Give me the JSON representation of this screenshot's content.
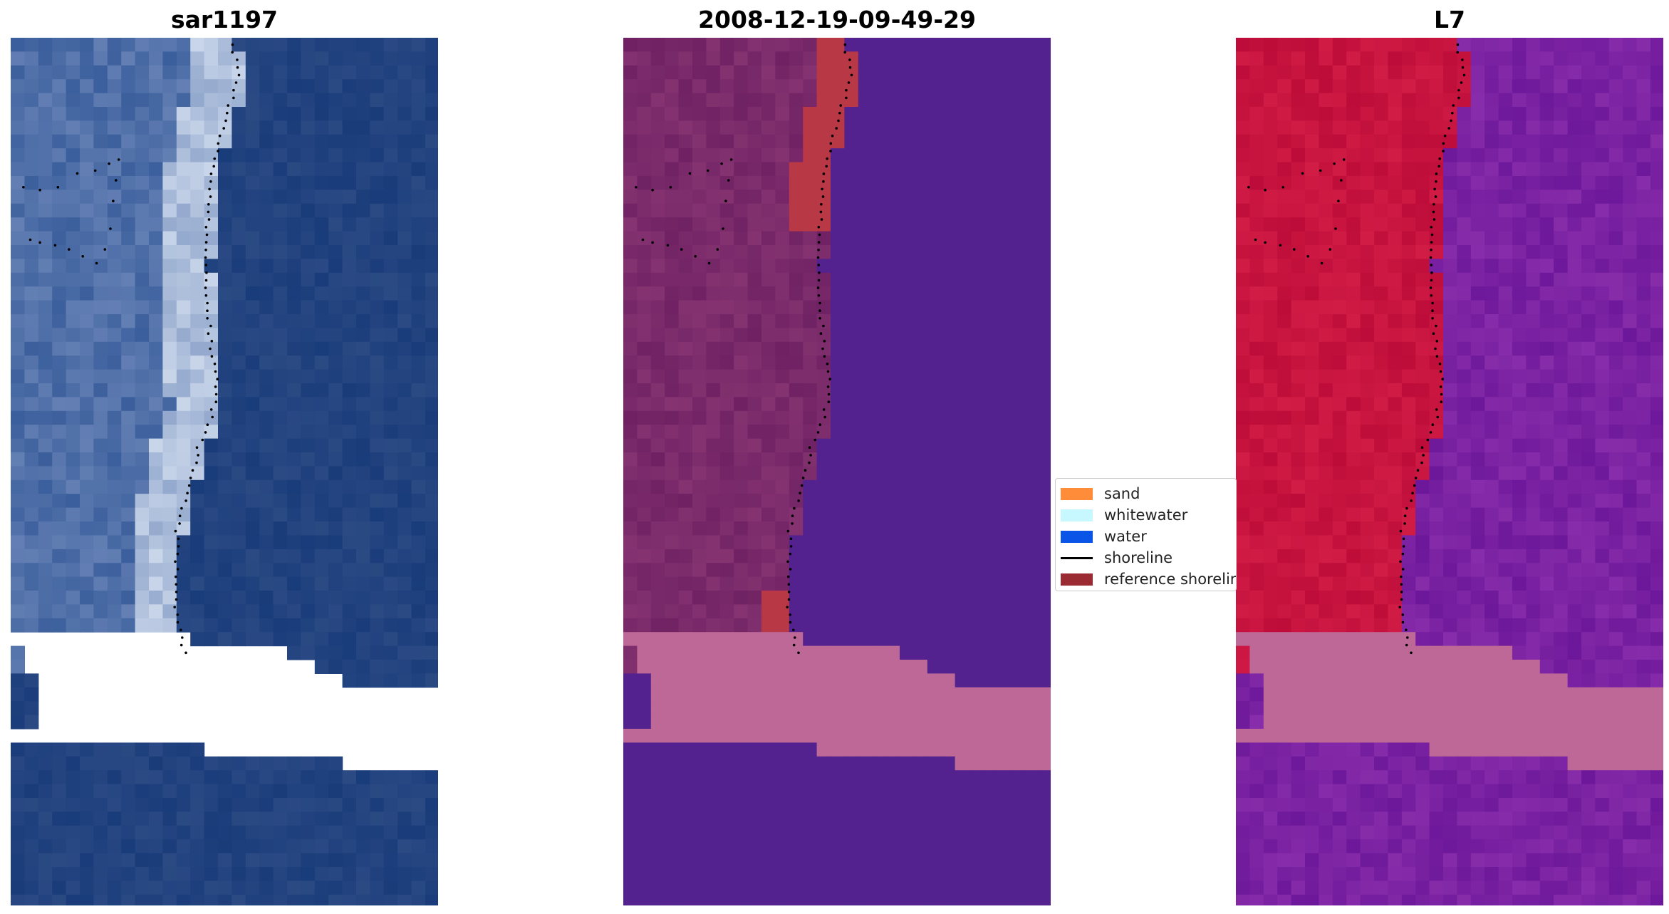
{
  "panels": [
    {
      "title": "sar1197",
      "kind": "rgb-composite"
    },
    {
      "title": "2008-12-19-09-49-29",
      "kind": "classified-overlay"
    },
    {
      "title": "L7",
      "kind": "index-map"
    }
  ],
  "legend": {
    "items": [
      {
        "label": "sand",
        "type": "patch",
        "color": "#ff8c38"
      },
      {
        "label": "whitewater",
        "type": "patch",
        "color": "#c8f8ff"
      },
      {
        "label": "water",
        "type": "patch",
        "color": "#0a55e8"
      },
      {
        "label": "shoreline",
        "type": "line",
        "color": "#000000"
      },
      {
        "label": "reference shoreline",
        "type": "patch",
        "color": "#9b2b32"
      }
    ]
  },
  "colors": {
    "rgb_water": "#22437f",
    "rgb_foam": "#c9d6ea",
    "rgb_land": "#4f6fa8",
    "class_land": "#7a2a6a",
    "class_water": "#53228f",
    "class_reference": "#b83846",
    "class_nodata": "#bd6896",
    "l7_land": "#c7143f",
    "l7_water": "#7a22a2",
    "l7_nodata": "#bd6896",
    "shoreline_dots": "#000000"
  }
}
